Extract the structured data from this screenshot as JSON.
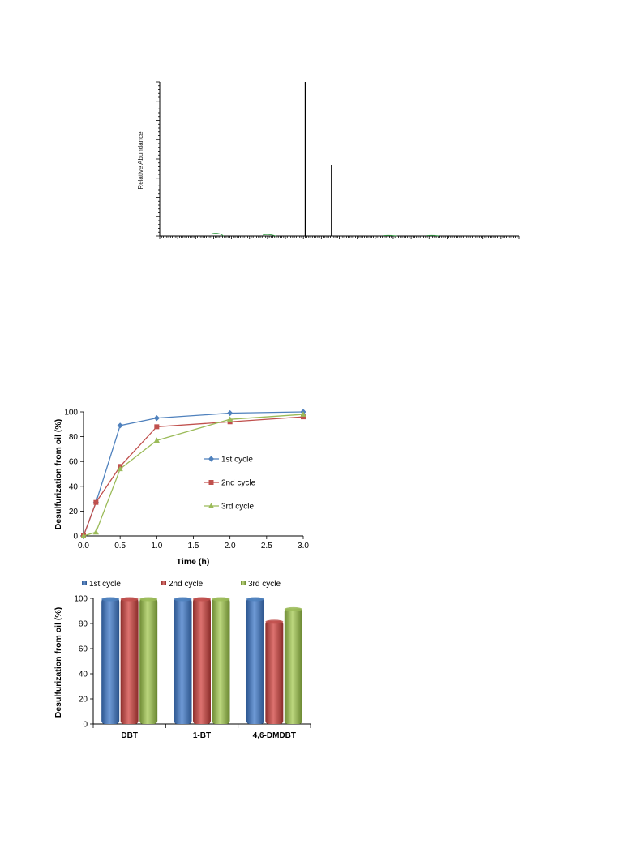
{
  "chart_data": [
    {
      "type": "line",
      "ylabel": "Relative Abundance",
      "xlabel": "",
      "peaks": [
        {
          "x": 0.405,
          "value": 100
        },
        {
          "x": 0.478,
          "value": 46
        }
      ],
      "minor_traces": [
        {
          "x": 0.16,
          "value": 3
        },
        {
          "x": 0.305,
          "value": 1.5
        },
        {
          "x": 0.64,
          "value": 0.6
        },
        {
          "x": 0.76,
          "value": 0.6
        }
      ]
    },
    {
      "type": "line",
      "xlabel": "Time (h)",
      "ylabel": "Desulfurization from oil (%)",
      "xlim": [
        0,
        3
      ],
      "ylim": [
        0,
        100
      ],
      "xticks": [
        "0.0",
        "0.5",
        "1.0",
        "1.5",
        "2.0",
        "2.5",
        "3.0"
      ],
      "yticks": [
        "0",
        "20",
        "40",
        "60",
        "80",
        "100"
      ],
      "legend": "center-right",
      "series": [
        {
          "name": "1st cycle",
          "color": "#4f81bd",
          "marker": "diamond",
          "x": [
            0,
            0.17,
            0.5,
            1.0,
            2.0,
            3.0
          ],
          "values": [
            0,
            27,
            89,
            95,
            99,
            100
          ]
        },
        {
          "name": "2nd cycle",
          "color": "#c0504d",
          "marker": "square",
          "x": [
            0,
            0.17,
            0.5,
            1.0,
            2.0,
            3.0
          ],
          "values": [
            0,
            27,
            56,
            88,
            92,
            96
          ]
        },
        {
          "name": "3rd cycle",
          "color": "#9bbb59",
          "marker": "triangle",
          "x": [
            0,
            0.17,
            0.5,
            1.0,
            2.0,
            3.0
          ],
          "values": [
            0,
            3,
            54,
            77,
            94,
            98
          ]
        }
      ]
    },
    {
      "type": "bar",
      "ylabel": "Desulfurization from oil (%)",
      "ylim": [
        0,
        100
      ],
      "yticks": [
        "0",
        "20",
        "40",
        "60",
        "80",
        "100"
      ],
      "categories": [
        "DBT",
        "1-BT",
        "4,6-DMDBT"
      ],
      "legend": "top",
      "series": [
        {
          "name": "1st cycle",
          "color": "#4f81bd",
          "values": [
            100,
            100,
            100
          ]
        },
        {
          "name": "2nd cycle",
          "color": "#c0504d",
          "values": [
            100,
            100,
            82
          ]
        },
        {
          "name": "3rd cycle",
          "color": "#9bbb59",
          "values": [
            100,
            100,
            92
          ]
        }
      ]
    }
  ]
}
